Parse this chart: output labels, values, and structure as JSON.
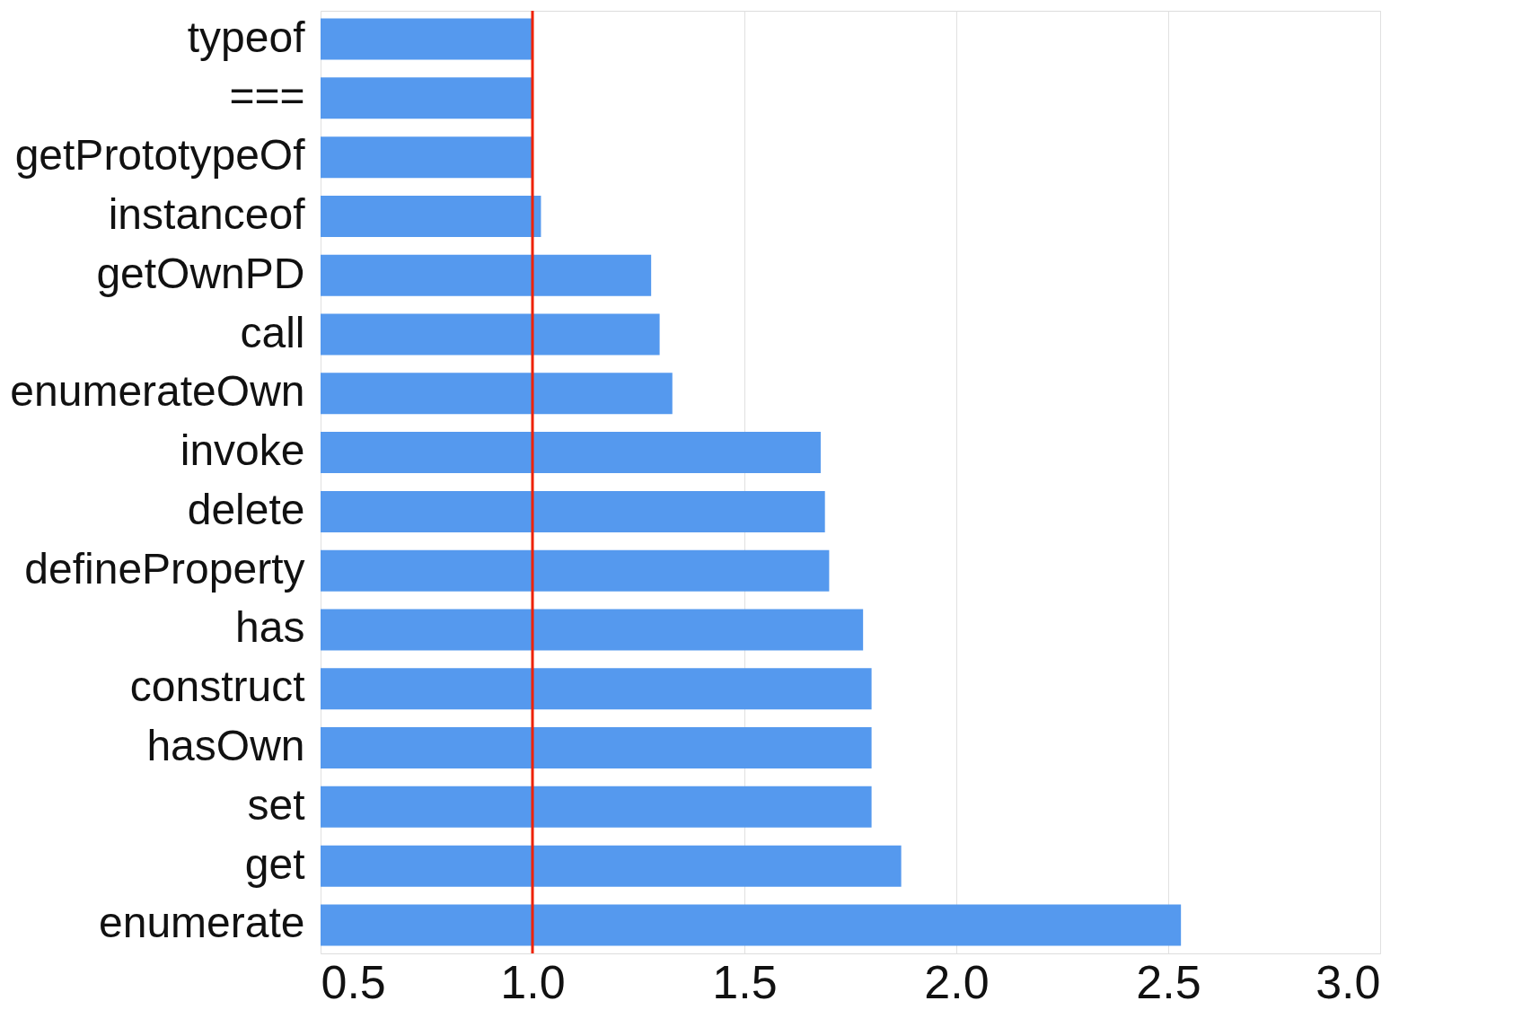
{
  "chart_data": {
    "type": "bar",
    "orientation": "horizontal",
    "categories": [
      "typeof",
      "===",
      "getPrototypeOf",
      "instanceof",
      "getOwnPD",
      "call",
      "enumerateOwn",
      "invoke",
      "delete",
      "defineProperty",
      "has",
      "construct",
      "hasOwn",
      "set",
      "get",
      "enumerate"
    ],
    "values": [
      1.0,
      1.0,
      1.0,
      1.02,
      1.28,
      1.3,
      1.33,
      1.68,
      1.69,
      1.7,
      1.78,
      1.8,
      1.8,
      1.8,
      1.87,
      2.53
    ],
    "color": "#5599ee",
    "xlim": [
      0.5,
      3.0
    ],
    "xticks": [
      {
        "value": 0.5,
        "label": "0.5"
      },
      {
        "value": 1.0,
        "label": "1.0"
      },
      {
        "value": 1.5,
        "label": "1.5"
      },
      {
        "value": 2.0,
        "label": "2.0"
      },
      {
        "value": 2.5,
        "label": "2.5"
      },
      {
        "value": 3.0,
        "label": "3.0"
      }
    ],
    "grid": "x",
    "ref_lines": [
      {
        "axis": "x",
        "value": 1.0,
        "color": "#ee2200"
      }
    ]
  }
}
